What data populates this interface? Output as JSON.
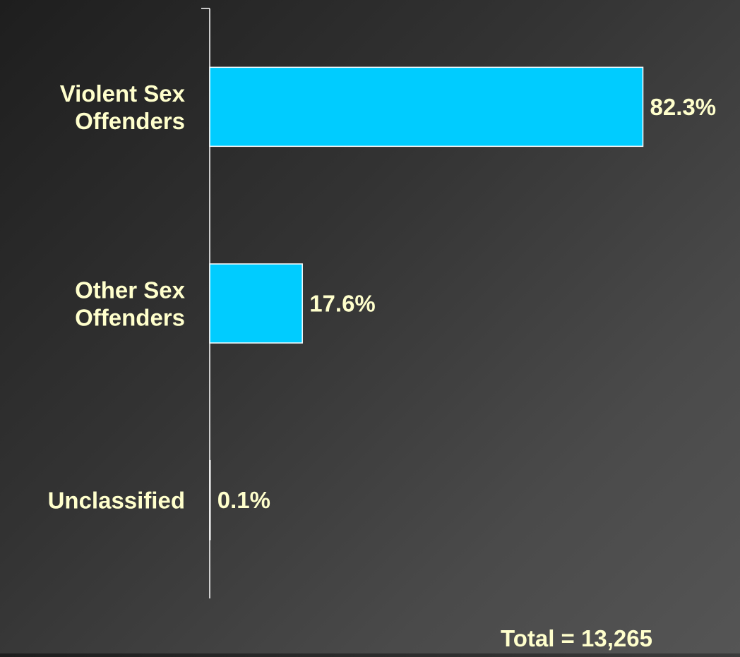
{
  "chart_data": {
    "type": "bar",
    "orientation": "horizontal",
    "categories": [
      [
        "Violent Sex",
        "Offenders"
      ],
      [
        "Other Sex",
        "Offenders"
      ],
      [
        "Unclassified"
      ]
    ],
    "values": [
      82.3,
      17.6,
      0.1
    ],
    "value_labels": [
      "82.3%",
      "17.6%",
      "0.1%"
    ],
    "xlim": [
      0,
      100
    ],
    "grid": false,
    "legend": "none",
    "colors": {
      "bar": "#00CCFF",
      "bar_outline": "#FFFFFF",
      "text": "#FFFFCC",
      "axis": "#FFFFFF"
    }
  },
  "footer": {
    "total_label": "Total = 13,265"
  }
}
